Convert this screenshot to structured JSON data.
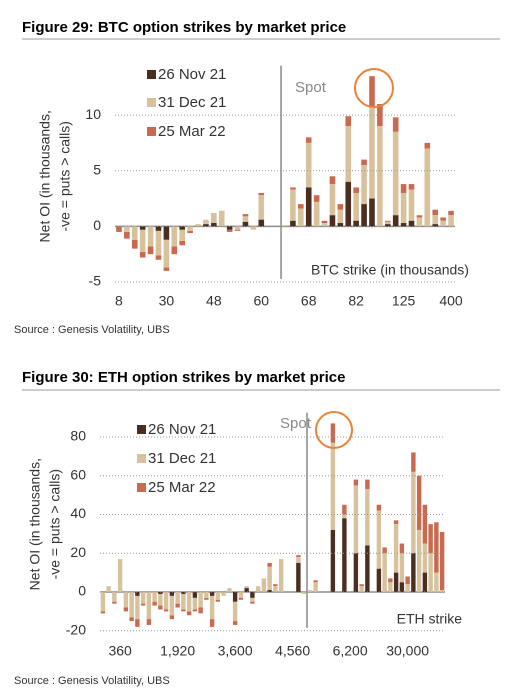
{
  "chart_data": [
    {
      "type": "bar",
      "title": "Figure 29: BTC option strikes by market price",
      "y_label": [
        "Net OI (in thousands,",
        "-ve = puts > calls)"
      ],
      "x_label": "BTC strike (in thousands)",
      "spot_label": "Spot",
      "source": "Source : Genesis Volatility, UBS",
      "categories": [
        "8",
        null,
        null,
        null,
        null,
        null,
        "30",
        null,
        null,
        null,
        null,
        null,
        "48",
        null,
        null,
        null,
        null,
        null,
        "60",
        null,
        null,
        null,
        null,
        null,
        "68",
        null,
        null,
        null,
        null,
        null,
        "82",
        null,
        null,
        null,
        null,
        null,
        "125",
        null,
        null,
        null,
        null,
        null,
        "400"
      ],
      "ylim": [
        -5,
        14
      ],
      "yticks": [
        -5,
        0,
        5,
        10
      ],
      "grid": true,
      "stacked": true,
      "series": [
        {
          "name": "26 Nov 21",
          "color": "#4b2e22",
          "values": [
            0,
            0,
            0,
            -0.3,
            0,
            -0.4,
            -1.2,
            0,
            -0.3,
            0,
            0,
            0.2,
            0.3,
            0,
            -0.3,
            0,
            0.4,
            0,
            0.6,
            0,
            0,
            0,
            0.5,
            0,
            3.5,
            0,
            0,
            1,
            0.3,
            4,
            0.5,
            2,
            2.5,
            0,
            0.2,
            1,
            0.3,
            0.5,
            0,
            0,
            0.2,
            0,
            0
          ]
        },
        {
          "name": "31 Dec 21",
          "color": "#d8c29e",
          "values": [
            0,
            -0.5,
            -1.2,
            -2,
            -1.8,
            -2.2,
            -2.5,
            -1.8,
            -1,
            -0.4,
            0.2,
            0.4,
            0.9,
            1.4,
            0,
            -0.3,
            0.5,
            -0.3,
            2.2,
            0,
            0,
            0.1,
            2.8,
            1.6,
            4,
            2.2,
            0.3,
            2.8,
            1.2,
            5,
            2.5,
            3.5,
            8.3,
            9,
            0.2,
            7.5,
            2.7,
            2.8,
            0.8,
            7,
            0.8,
            0.5,
            1
          ]
        },
        {
          "name": "25 Mar 22",
          "color": "#c9694f",
          "values": [
            -0.5,
            -0.6,
            -0.8,
            -0.5,
            -0.7,
            -0.4,
            -0.3,
            -0.7,
            -0.4,
            -0.2,
            0,
            0,
            0,
            0,
            -0.2,
            -0.1,
            0.2,
            0,
            0.2,
            0,
            0,
            0,
            0.2,
            0.4,
            0.5,
            0.6,
            0.2,
            0.7,
            0.5,
            0.9,
            0.5,
            0.5,
            2.7,
            2,
            0.1,
            1.3,
            0.8,
            0.5,
            0.2,
            0.5,
            0.5,
            0.3,
            0.4
          ]
        }
      ]
    },
    {
      "type": "bar",
      "title": "Figure 30: ETH option strikes by market price",
      "y_label": [
        "Net OI (in thousands,",
        "-ve = puts > calls)"
      ],
      "x_label": "ETH strike",
      "spot_label": "Spot",
      "source": "Source : Genesis Volatility, UBS",
      "categories": [
        null,
        null,
        null,
        "360",
        null,
        null,
        null,
        null,
        null,
        null,
        null,
        null,
        null,
        "1,920",
        null,
        null,
        null,
        null,
        null,
        null,
        null,
        null,
        null,
        "3,600",
        null,
        null,
        null,
        null,
        null,
        null,
        null,
        null,
        null,
        "4,560",
        null,
        null,
        null,
        null,
        null,
        null,
        null,
        null,
        null,
        "6,200",
        null,
        null,
        null,
        null,
        null,
        null,
        null,
        null,
        null,
        "30,000",
        null,
        null,
        null,
        null,
        null,
        null
      ],
      "ylim": [
        -20,
        90
      ],
      "yticks": [
        -20,
        0,
        20,
        40,
        60,
        80
      ],
      "grid": true,
      "stacked": true,
      "series": [
        {
          "name": "26 Nov 21",
          "color": "#4b2e22",
          "values": [
            0,
            0,
            0,
            0,
            0,
            0,
            -2,
            0,
            0,
            0,
            -1,
            0,
            -2,
            0,
            -1,
            0,
            -3,
            0,
            0,
            -2,
            0,
            0,
            0,
            -5,
            0,
            2,
            -3,
            0,
            0,
            1,
            0,
            0,
            0,
            0,
            15,
            0,
            0,
            0,
            0,
            0,
            32,
            0,
            38,
            0,
            20,
            0,
            24,
            0,
            12,
            0,
            0,
            10,
            5,
            0,
            20,
            0,
            10,
            0,
            0,
            0
          ]
        },
        {
          "name": "31 Dec 21",
          "color": "#d8c29e",
          "values": [
            -10,
            3,
            -5,
            17,
            -8,
            -13,
            -12,
            -6,
            -14,
            -5,
            -6,
            -9,
            -10,
            -6,
            -8,
            -10,
            -6,
            -8,
            -3,
            -12,
            -4,
            -2,
            2,
            -10,
            -3,
            1,
            -2,
            3,
            7,
            12,
            3,
            17,
            0,
            0,
            3,
            -1,
            1,
            5,
            0,
            0,
            45,
            0,
            2,
            0,
            35,
            3,
            29,
            0,
            30,
            20,
            5,
            25,
            15,
            4,
            42,
            32,
            15,
            20,
            10,
            1
          ]
        },
        {
          "name": "25 Mar 22",
          "color": "#c9694f",
          "values": [
            -1,
            0,
            -1,
            0,
            -2,
            -2,
            -4,
            -1,
            -3,
            -2,
            -2,
            -1,
            -2,
            -2,
            -1,
            -2,
            -1,
            -3,
            -1,
            -4,
            -1,
            0,
            0,
            -2,
            -1,
            0,
            -1,
            0,
            0,
            2,
            1,
            0,
            0,
            0,
            1,
            0,
            0,
            1,
            0,
            0,
            10,
            0,
            5,
            0,
            3,
            1,
            5,
            0,
            3,
            3,
            2,
            2,
            5,
            4,
            10,
            28,
            20,
            15,
            26,
            30
          ]
        }
      ]
    }
  ]
}
